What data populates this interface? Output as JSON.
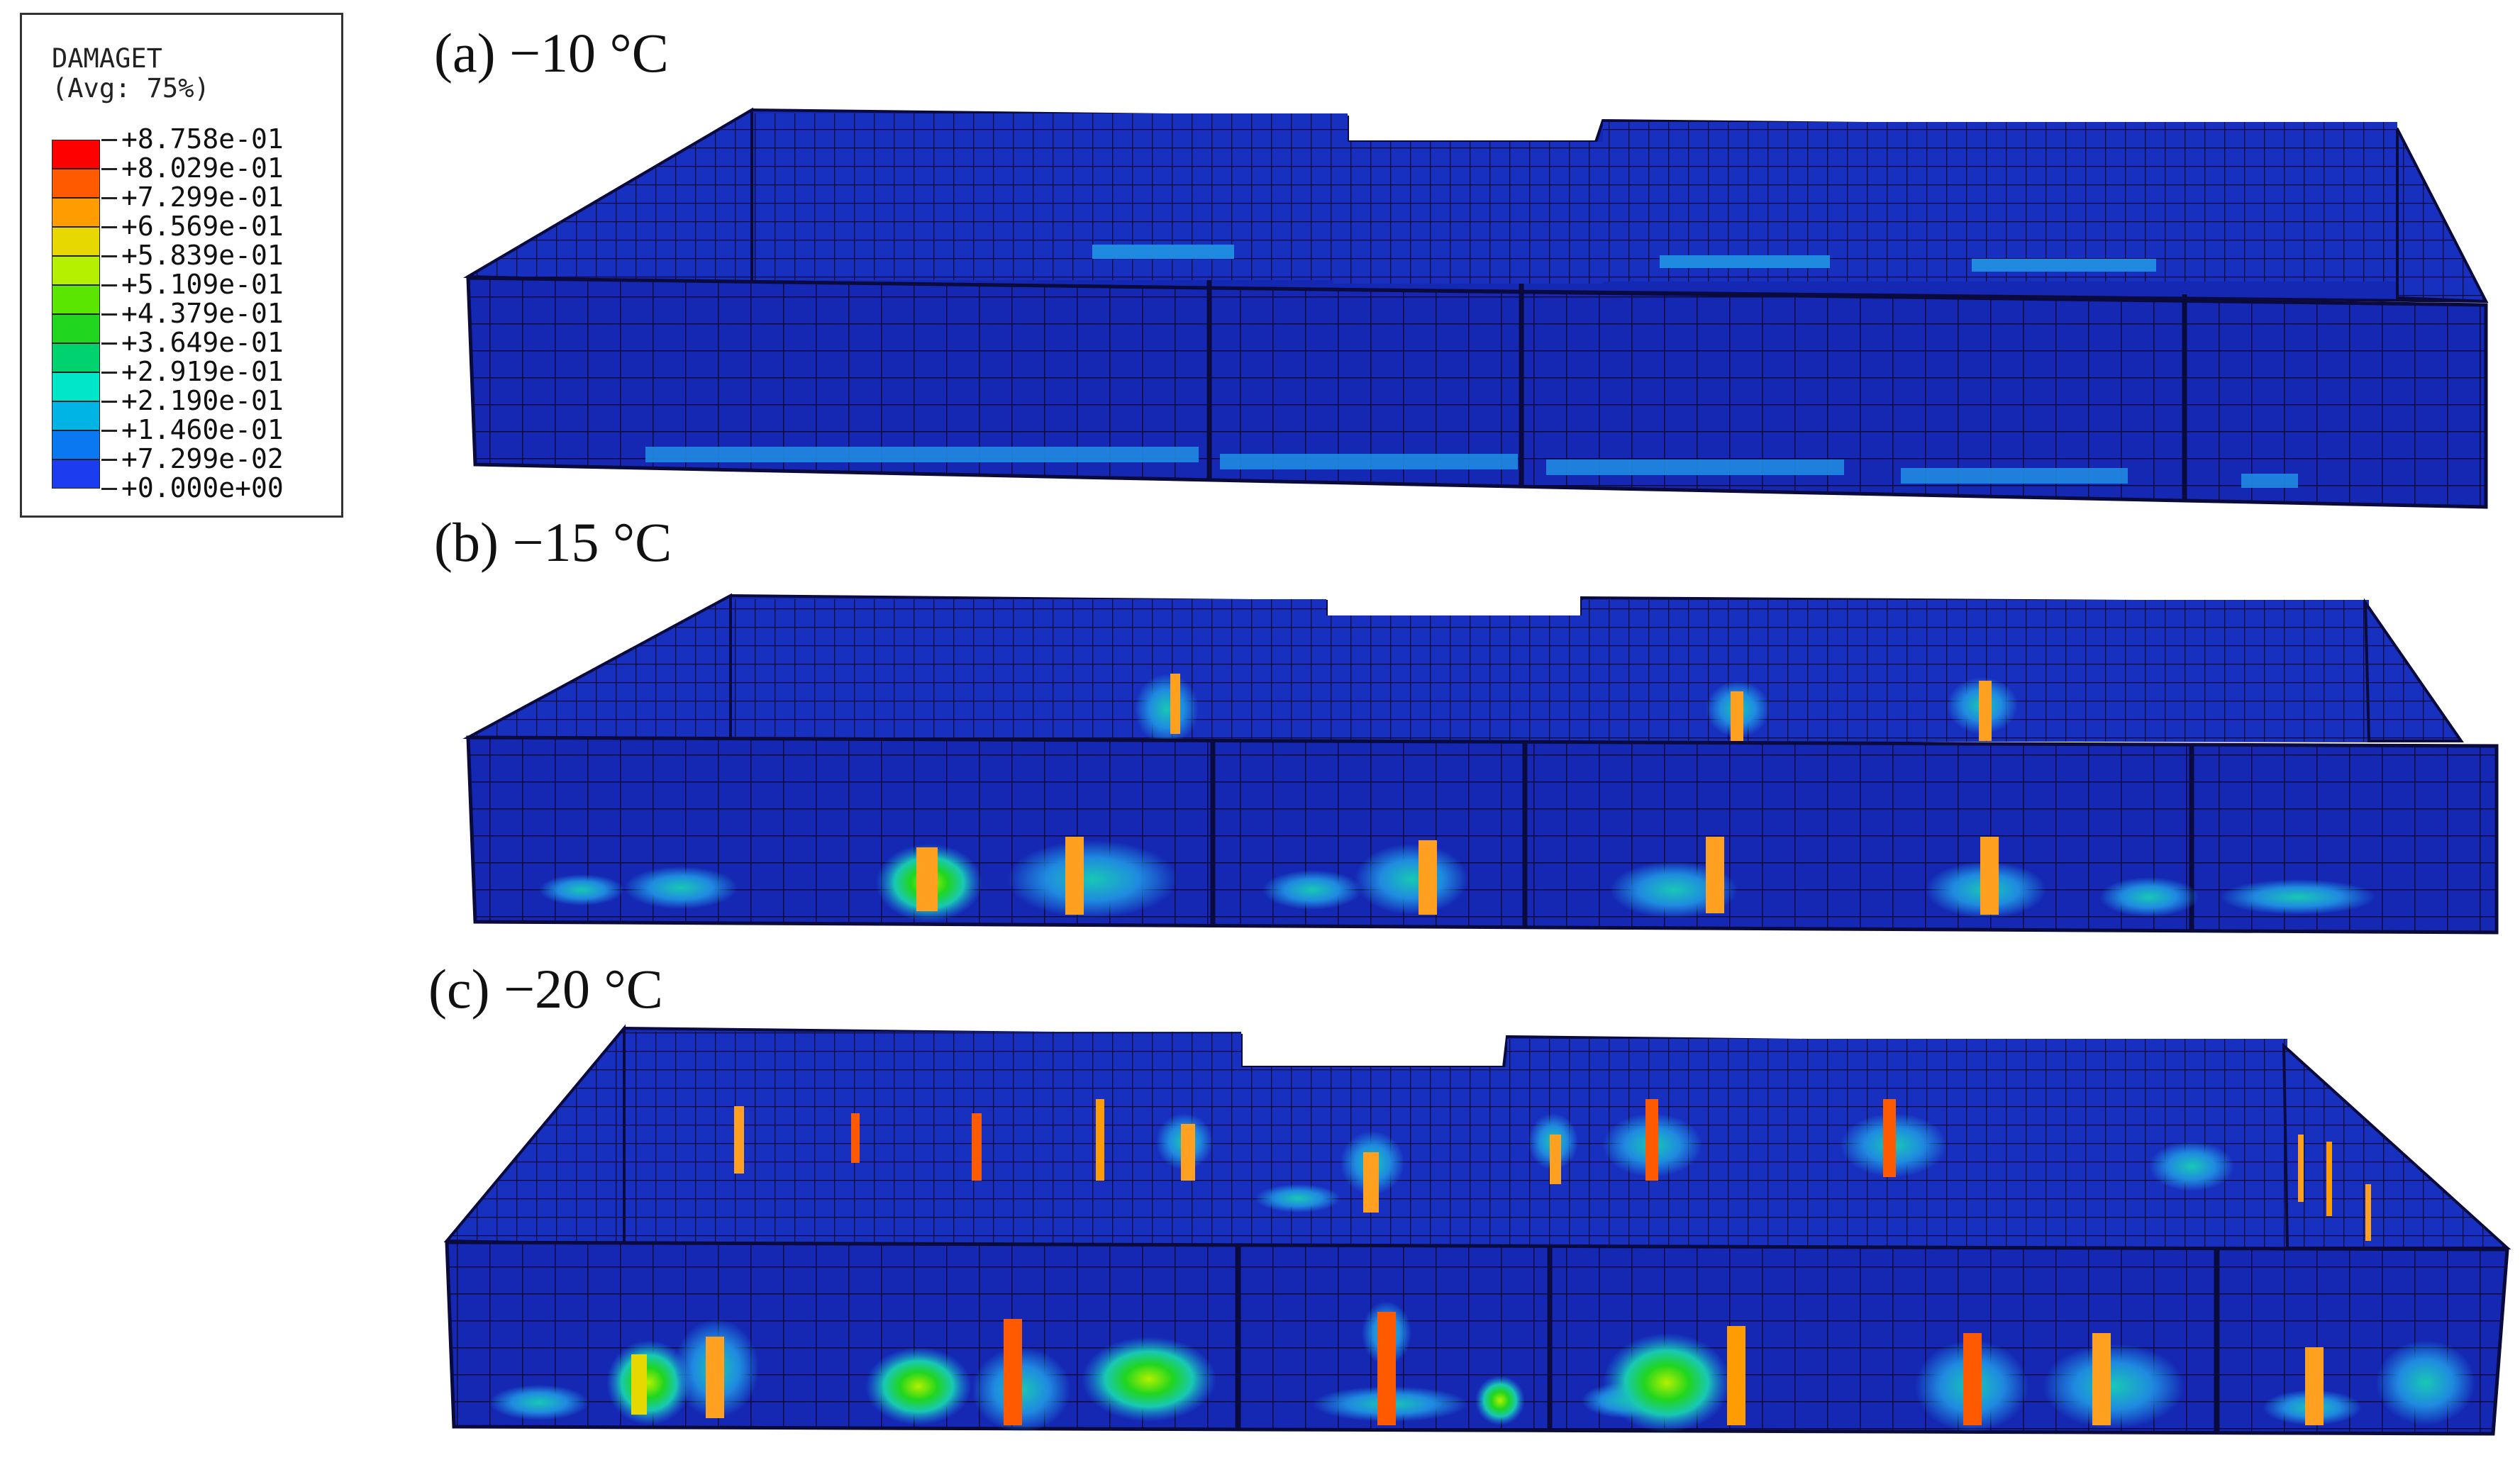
{
  "legend": {
    "title": "DAMAGET",
    "subtitle": "(Avg: 75%)",
    "values": [
      "+8.758e-01",
      "+8.029e-01",
      "+7.299e-01",
      "+6.569e-01",
      "+5.839e-01",
      "+5.109e-01",
      "+4.379e-01",
      "+3.649e-01",
      "+2.919e-01",
      "+2.190e-01",
      "+1.460e-01",
      "+7.299e-02",
      "+0.000e+00"
    ],
    "colors": [
      "#ff0000",
      "#ff5a00",
      "#ff9c00",
      "#e6d800",
      "#b4f000",
      "#5ae600",
      "#21d61e",
      "#00d270",
      "#00e6c8",
      "#00b4e6",
      "#0a78f0",
      "#1c3cf0"
    ]
  },
  "panels": [
    {
      "label": "(a) −10 °C"
    },
    {
      "label": "(b) −15 °C"
    },
    {
      "label": "(c) −20 °C"
    }
  ],
  "colors": {
    "wall": "#1428b4",
    "wall_top": "#2036c8",
    "mesh": "#0a0a3c",
    "low_damage": "#1f8ae0",
    "mid_damage": "#18c8b4",
    "orange": "#ffa020"
  }
}
